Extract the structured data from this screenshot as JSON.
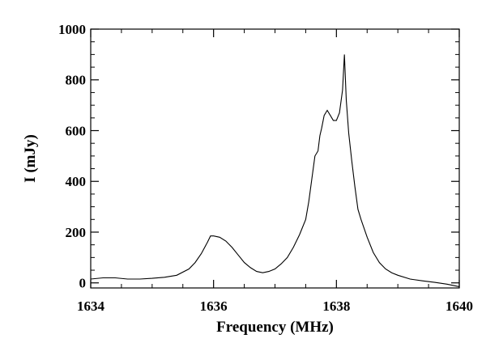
{
  "chart_data": {
    "type": "line",
    "title": "",
    "xlabel": "Frequency (MHz)",
    "ylabel": "I (mJy)",
    "xlim": [
      1634,
      1640
    ],
    "ylim": [
      -20,
      1000
    ],
    "x_ticks": [
      1634,
      1636,
      1638,
      1640
    ],
    "y_ticks": [
      0,
      200,
      400,
      600,
      800,
      1000
    ],
    "grid": false,
    "legend": "none",
    "line_color": "#000000",
    "series": [
      {
        "x": [
          1634.0,
          1634.2,
          1634.4,
          1634.6,
          1634.8,
          1635.0,
          1635.2,
          1635.4,
          1635.6,
          1635.7,
          1635.8,
          1635.9,
          1635.95,
          1636.0,
          1636.1,
          1636.2,
          1636.3,
          1636.4,
          1636.5,
          1636.6,
          1636.7,
          1636.8,
          1636.9,
          1637.0,
          1637.1,
          1637.2,
          1637.3,
          1637.4,
          1637.5,
          1637.55,
          1637.6,
          1637.65,
          1637.7,
          1637.73,
          1637.76,
          1637.8,
          1637.85,
          1637.9,
          1637.95,
          1638.0,
          1638.05,
          1638.1,
          1638.13,
          1638.16,
          1638.2,
          1638.25,
          1638.3,
          1638.35,
          1638.4,
          1638.5,
          1638.6,
          1638.7,
          1638.8,
          1638.9,
          1639.0,
          1639.2,
          1639.4,
          1639.6,
          1639.8,
          1640.0
        ],
        "y": [
          15,
          20,
          20,
          15,
          15,
          18,
          22,
          30,
          55,
          80,
          115,
          160,
          185,
          185,
          180,
          165,
          140,
          110,
          80,
          60,
          45,
          40,
          45,
          55,
          75,
          100,
          140,
          190,
          250,
          320,
          410,
          500,
          520,
          580,
          610,
          660,
          680,
          660,
          640,
          640,
          670,
          760,
          900,
          720,
          590,
          480,
          380,
          290,
          250,
          180,
          120,
          80,
          55,
          40,
          30,
          15,
          8,
          2,
          -5,
          -15
        ]
      }
    ]
  }
}
